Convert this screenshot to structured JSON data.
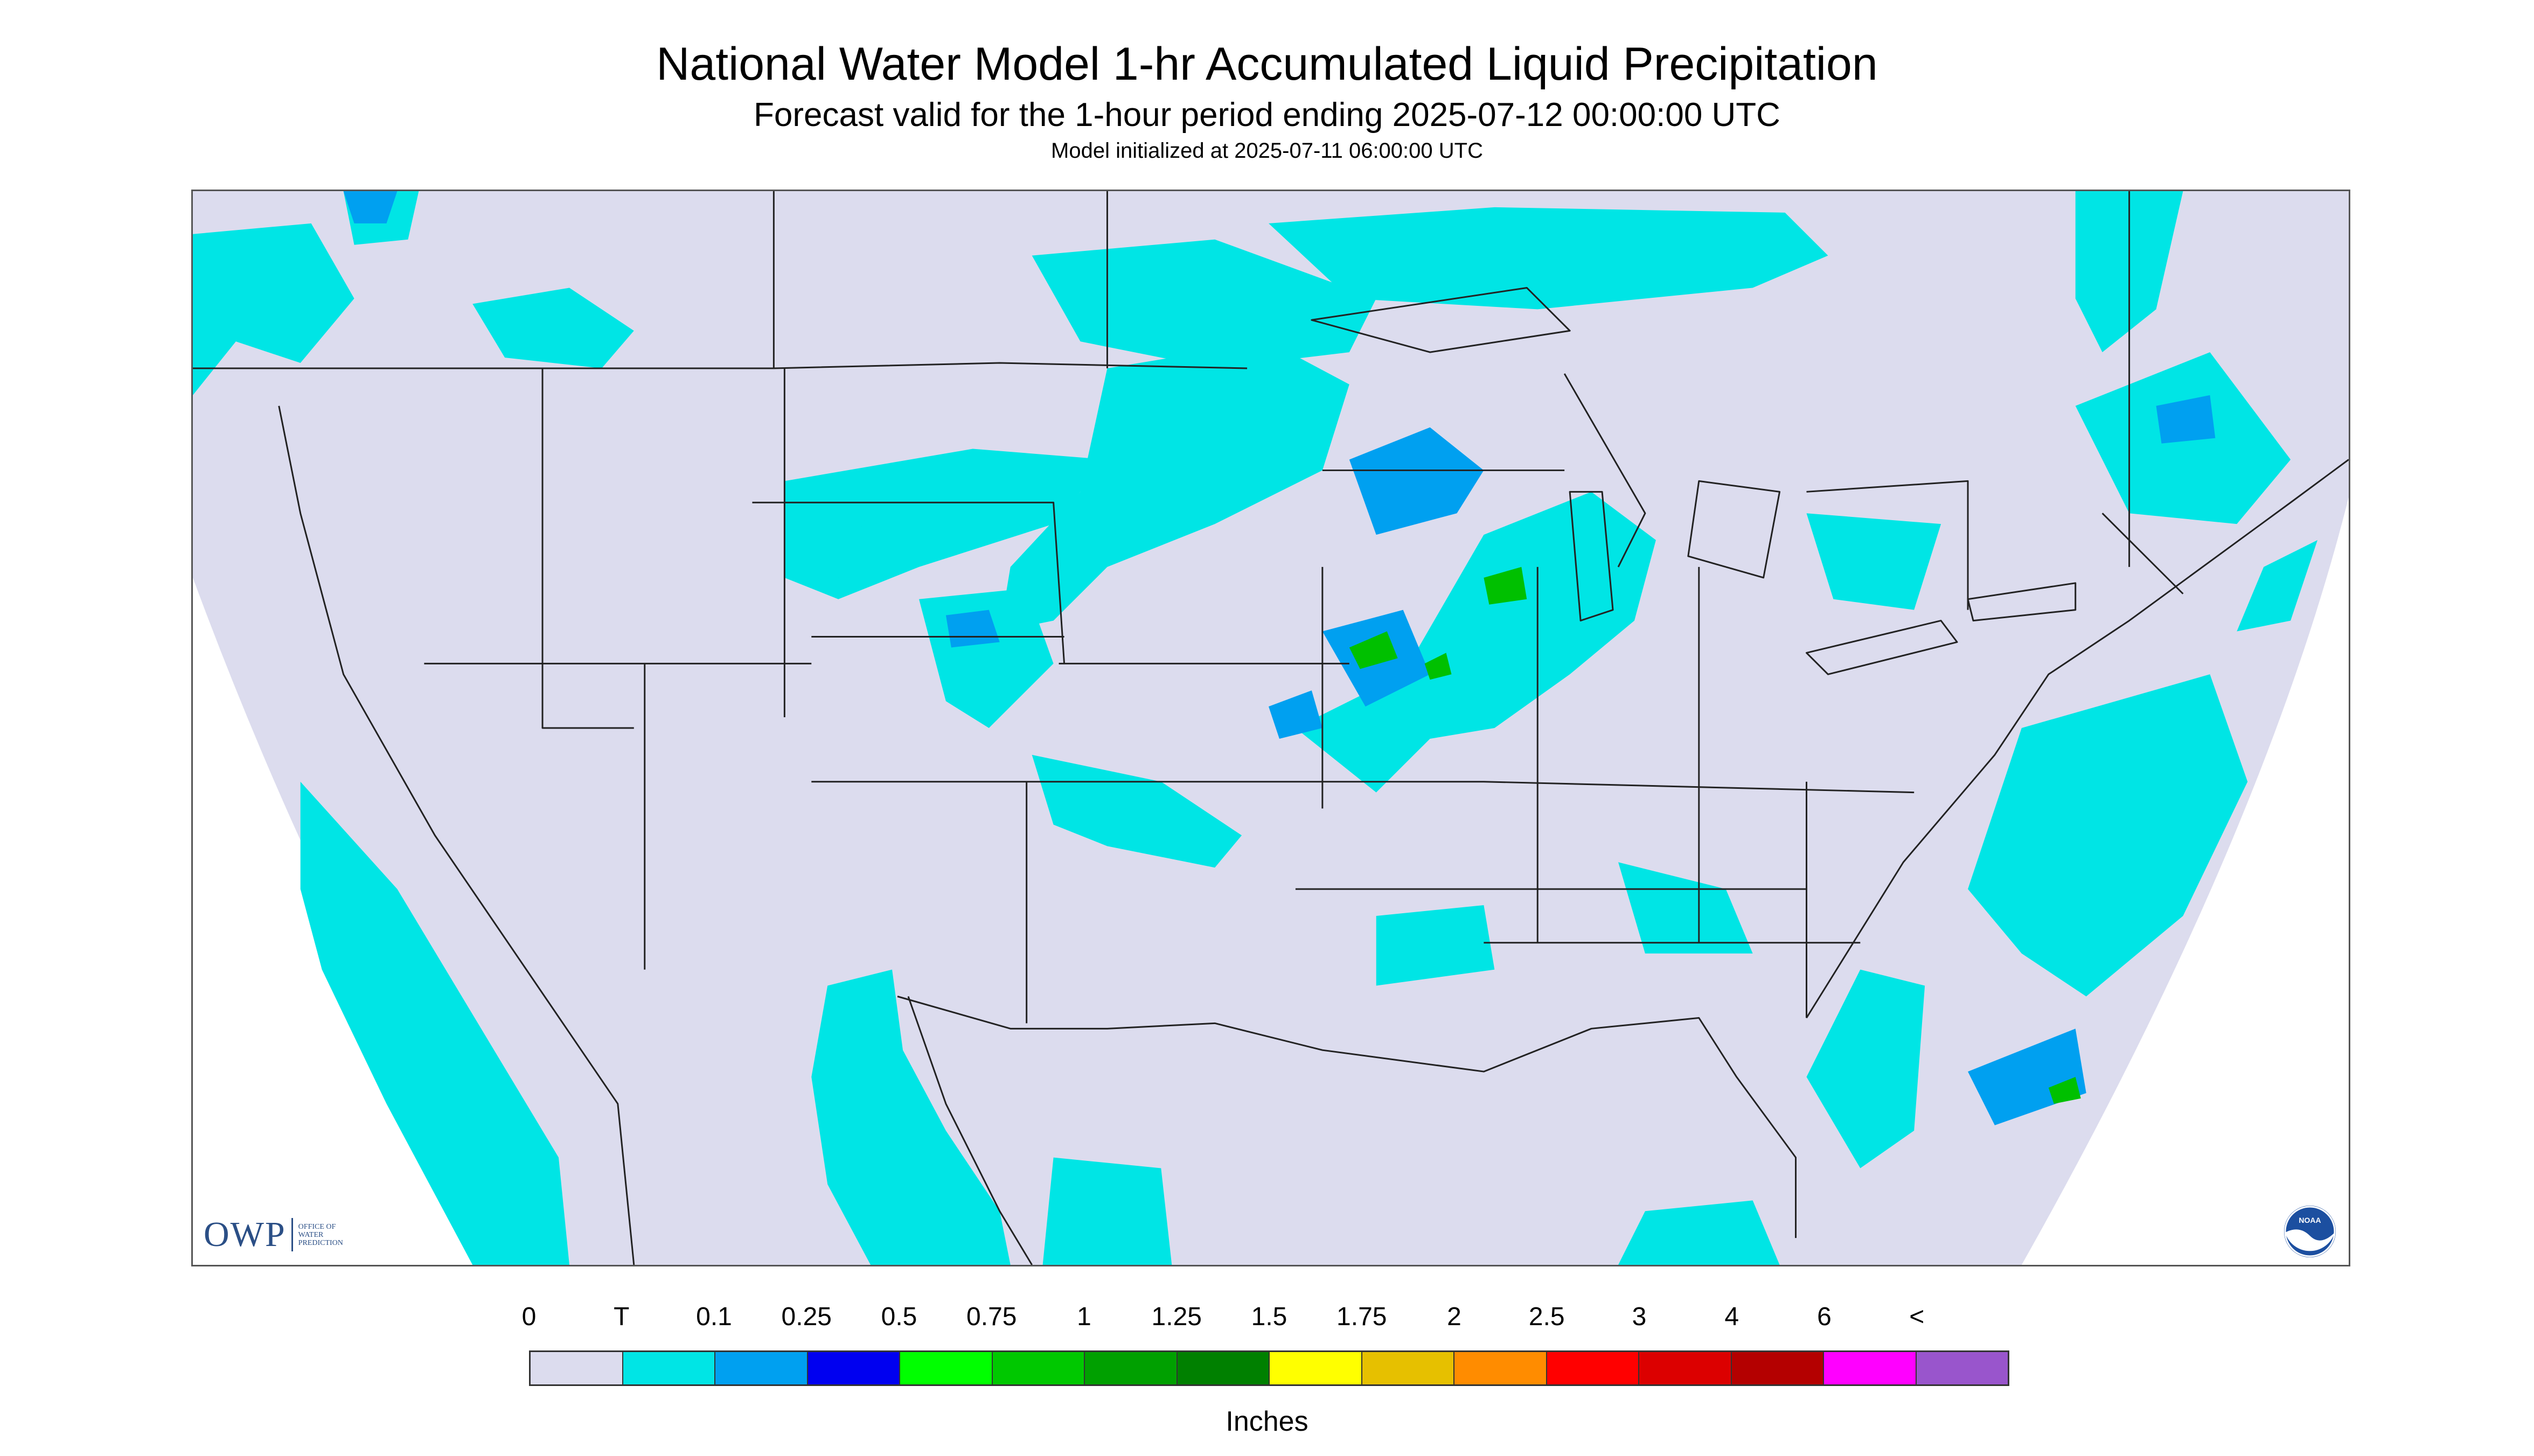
{
  "header": {
    "title": "National Water Model 1-hr Accumulated Liquid Precipitation",
    "subtitle": "Forecast valid for the 1-hour period ending 2025-07-12 00:00:00 UTC",
    "init_text": "Model initialized at 2025-07-11 06:00:00 UTC"
  },
  "map": {
    "background_color": "#dcdcee",
    "outside_color": "#ffffff",
    "border_color": "#222222",
    "precip_colors": {
      "trace": "#00e5e5",
      "light": "#00a0f0",
      "moderate": "#0000f0",
      "heavy": "#00c000",
      "very_heavy": "#008000"
    },
    "icons": [
      "owp-logo",
      "noaa-logo"
    ]
  },
  "logos": {
    "owp_abbrev": "OWP",
    "owp_full": [
      "OFFICE OF",
      "WATER",
      "PREDICTION"
    ],
    "noaa": "NOAA"
  },
  "legend": {
    "labels": [
      "0",
      "T",
      "0.1",
      "0.25",
      "0.5",
      "0.75",
      "1",
      "1.25",
      "1.5",
      "1.75",
      "2",
      "2.5",
      "3",
      "4",
      "6",
      "<"
    ],
    "colors": [
      "#dcdcee",
      "#00e5e5",
      "#00a0f0",
      "#0000f0",
      "#00ff00",
      "#00c800",
      "#00a000",
      "#008000",
      "#ffff00",
      "#e6c000",
      "#ff8c00",
      "#ff0000",
      "#dc0000",
      "#b40000",
      "#ff00ff",
      "#9955cc"
    ],
    "units": "Inches"
  }
}
